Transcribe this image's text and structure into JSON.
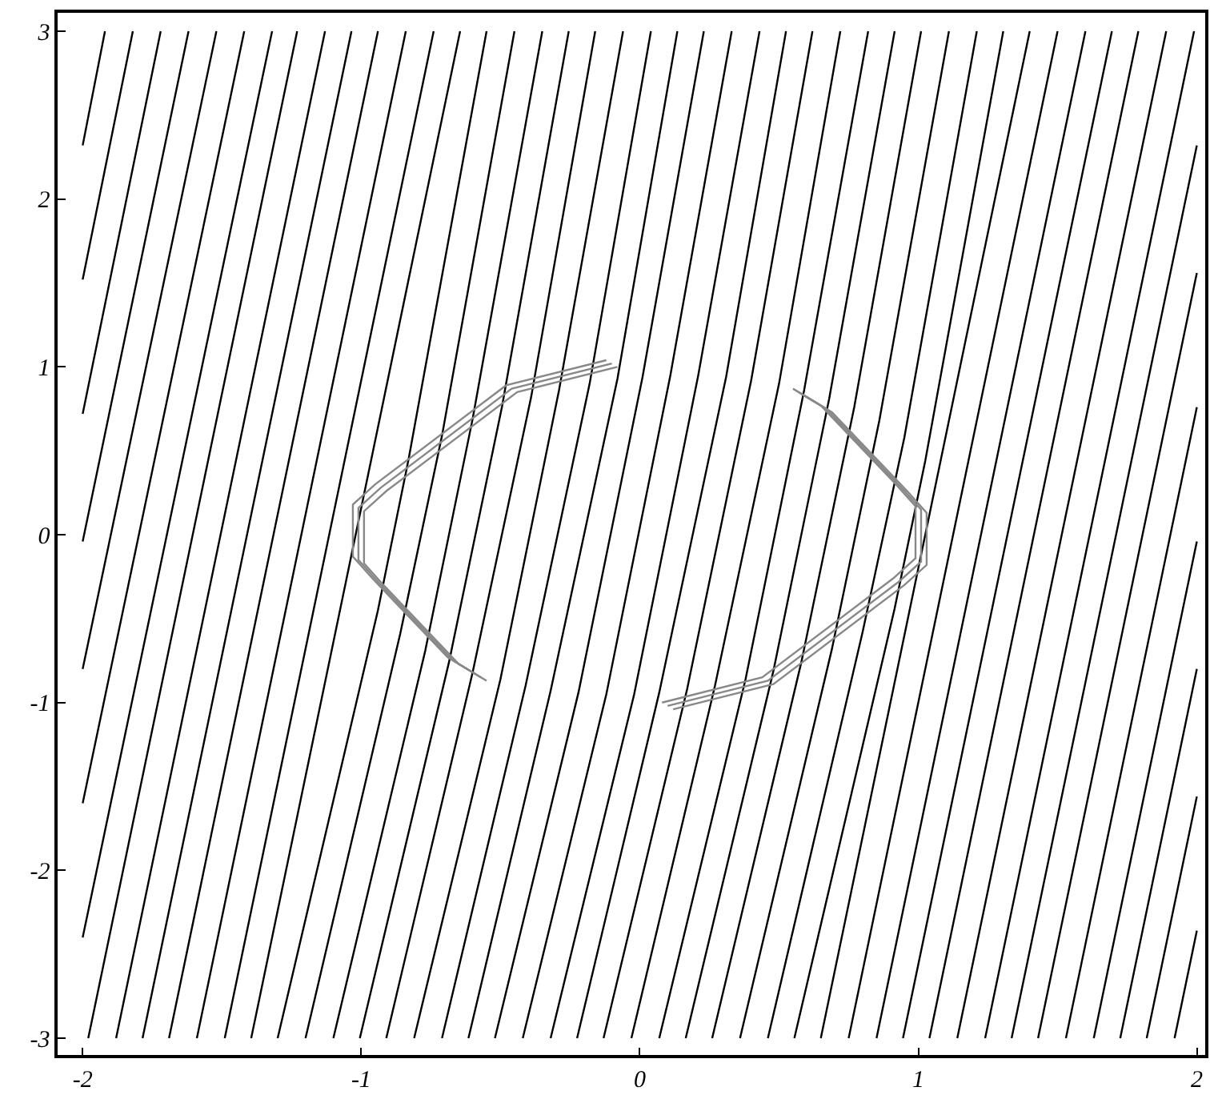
{
  "chart_data": {
    "type": "line",
    "xlim": [
      -2.09,
      2.03
    ],
    "ylim": [
      -3.1,
      3.11
    ],
    "xticks": [
      -2,
      -1,
      0,
      1,
      2
    ],
    "yticks": [
      -3,
      -2,
      -1,
      0,
      1,
      2,
      3
    ],
    "marker": "none",
    "line_style": "solid",
    "series": [
      {
        "color": "#000000",
        "x": [
          -2,
          -1.92
        ],
        "values": [
          2.32,
          3
        ]
      },
      {
        "color": "#000000",
        "x": [
          -2,
          -1.82
        ],
        "values": [
          1.52,
          3
        ]
      },
      {
        "color": "#000000",
        "x": [
          -2,
          -1.72
        ],
        "values": [
          0.72,
          3
        ]
      },
      {
        "color": "#000000",
        "x": [
          -2,
          -1.62
        ],
        "values": [
          -0.04,
          3
        ]
      },
      {
        "color": "#000000",
        "x": [
          -2,
          -1.52
        ],
        "values": [
          -0.8,
          3
        ]
      },
      {
        "color": "#000000",
        "x": [
          -2,
          -1.42
        ],
        "values": [
          -1.6,
          3
        ]
      },
      {
        "color": "#000000",
        "x": [
          -2,
          -1.32
        ],
        "values": [
          -2.4,
          3
        ]
      },
      {
        "color": "#000000",
        "x": [
          -1.98,
          -1.23
        ],
        "values": [
          -3,
          3
        ]
      },
      {
        "color": "#000000",
        "x": [
          -1.88,
          -1.13
        ],
        "values": [
          -3,
          3
        ]
      },
      {
        "color": "#000000",
        "x": [
          -1.785,
          -1.035
        ],
        "values": [
          -3,
          3
        ]
      },
      {
        "color": "#000000",
        "x": [
          -1.69,
          -0.94
        ],
        "values": [
          -3,
          3
        ]
      },
      {
        "color": "#000000",
        "x": [
          -1.59,
          -0.84
        ],
        "values": [
          -3,
          3
        ]
      },
      {
        "color": "#000000",
        "x": [
          -1.49,
          -0.74
        ],
        "values": [
          -3,
          3
        ]
      },
      {
        "color": "#000000",
        "x": [
          -1.395,
          -0.645
        ],
        "values": [
          -3,
          3
        ]
      },
      {
        "color": "#000000",
        "x": [
          -1.3,
          -0.94,
          -0.83,
          -0.55
        ],
        "values": [
          -3,
          -0.45,
          0.45,
          3
        ]
      },
      {
        "color": "#000000",
        "x": [
          -1.2,
          -0.86,
          -0.71,
          -0.45
        ],
        "values": [
          -3,
          -0.59,
          0.59,
          3
        ]
      },
      {
        "color": "#000000",
        "x": [
          -1.1,
          -0.77,
          -0.6,
          -0.35
        ],
        "values": [
          -3,
          -0.69,
          0.69,
          3
        ]
      },
      {
        "color": "#000000",
        "x": [
          -1.005,
          -0.685,
          -0.495,
          -0.255
        ],
        "values": [
          -3,
          -0.76,
          0.76,
          3
        ]
      },
      {
        "color": "#000000",
        "x": [
          -0.91,
          -0.6,
          -0.39,
          -0.16
        ],
        "values": [
          -3,
          -0.82,
          0.82,
          3
        ]
      },
      {
        "color": "#000000",
        "x": [
          -0.81,
          -0.5,
          -0.29,
          -0.06
        ],
        "values": [
          -3,
          -0.86,
          0.86,
          3
        ]
      },
      {
        "color": "#000000",
        "x": [
          -0.71,
          -0.41,
          -0.18,
          0.04
        ],
        "values": [
          -3,
          -0.9,
          0.9,
          3
        ]
      },
      {
        "color": "#000000",
        "x": [
          -0.615,
          -0.32,
          -0.08,
          0.135
        ],
        "values": [
          -3,
          -0.93,
          0.93,
          3
        ]
      },
      {
        "color": "#000000",
        "x": [
          -0.52,
          -0.22,
          0.01,
          0.23
        ],
        "values": [
          -3,
          -0.94,
          0.94,
          3
        ]
      },
      {
        "color": "#000000",
        "x": [
          -0.42,
          -0.12,
          0.11,
          0.33
        ],
        "values": [
          -3,
          -0.95,
          0.95,
          3
        ]
      },
      {
        "color": "#000000",
        "x": [
          -0.32,
          -0.02,
          0.21,
          0.43
        ],
        "values": [
          -3,
          -0.95,
          0.95,
          3
        ]
      },
      {
        "color": "#000000",
        "x": [
          -0.225,
          0.07,
          0.31,
          0.525
        ],
        "values": [
          -3,
          -0.94,
          0.94,
          3
        ]
      },
      {
        "color": "#000000",
        "x": [
          -0.13,
          0.17,
          0.4,
          0.62
        ],
        "values": [
          -3,
          -0.92,
          0.92,
          3
        ]
      },
      {
        "color": "#000000",
        "x": [
          -0.03,
          0.27,
          0.5,
          0.72
        ],
        "values": [
          -3,
          -0.9,
          0.9,
          3
        ]
      },
      {
        "color": "#000000",
        "x": [
          0.07,
          0.38,
          0.59,
          0.82
        ],
        "values": [
          -3,
          -0.86,
          0.86,
          3
        ]
      },
      {
        "color": "#000000",
        "x": [
          0.165,
          0.48,
          0.68,
          0.915
        ],
        "values": [
          -3,
          -0.81,
          0.81,
          3
        ]
      },
      {
        "color": "#000000",
        "x": [
          0.26,
          0.58,
          0.77,
          1.01
        ],
        "values": [
          -3,
          -0.76,
          0.76,
          3
        ]
      },
      {
        "color": "#000000",
        "x": [
          0.36,
          0.69,
          0.86,
          1.11
        ],
        "values": [
          -3,
          -0.68,
          0.68,
          3
        ]
      },
      {
        "color": "#000000",
        "x": [
          0.46,
          0.8,
          0.95,
          1.21
        ],
        "values": [
          -3,
          -0.58,
          0.58,
          3
        ]
      },
      {
        "color": "#000000",
        "x": [
          0.555,
          0.915,
          1.025,
          1.305
        ],
        "values": [
          -3,
          -0.44,
          0.44,
          3
        ]
      },
      {
        "color": "#000000",
        "x": [
          0.65,
          1.4
        ],
        "values": [
          -3,
          3
        ]
      },
      {
        "color": "#000000",
        "x": [
          0.75,
          1.5
        ],
        "values": [
          -3,
          3
        ]
      },
      {
        "color": "#000000",
        "x": [
          0.85,
          1.6
        ],
        "values": [
          -3,
          3
        ]
      },
      {
        "color": "#000000",
        "x": [
          0.945,
          1.695
        ],
        "values": [
          -3,
          3
        ]
      },
      {
        "color": "#000000",
        "x": [
          1.04,
          1.79
        ],
        "values": [
          -3,
          3
        ]
      },
      {
        "color": "#000000",
        "x": [
          1.14,
          1.89
        ],
        "values": [
          -3,
          3
        ]
      },
      {
        "color": "#000000",
        "x": [
          1.24,
          1.99
        ],
        "values": [
          -3,
          3
        ]
      },
      {
        "color": "#000000",
        "x": [
          1.335,
          2
        ],
        "values": [
          -3,
          2.32
        ]
      },
      {
        "color": "#000000",
        "x": [
          1.43,
          2
        ],
        "values": [
          -3,
          1.56
        ]
      },
      {
        "color": "#000000",
        "x": [
          1.53,
          2
        ],
        "values": [
          -3,
          0.76
        ]
      },
      {
        "color": "#000000",
        "x": [
          1.63,
          2
        ],
        "values": [
          -3,
          -0.04
        ]
      },
      {
        "color": "#000000",
        "x": [
          1.725,
          2
        ],
        "values": [
          -3,
          -0.8
        ]
      },
      {
        "color": "#000000",
        "x": [
          1.82,
          2
        ],
        "values": [
          -3,
          -1.56
        ]
      },
      {
        "color": "#000000",
        "x": [
          1.92,
          2
        ],
        "values": [
          -3,
          -2.36
        ]
      },
      {
        "color": "#888888",
        "x": [
          -0.59,
          -0.69,
          -0.96,
          -1.03,
          -1.03,
          -0.95,
          -0.48,
          -0.12
        ],
        "values": [
          -0.83,
          -0.73,
          -0.26,
          -0.13,
          0.18,
          0.3,
          0.89,
          1.04
        ]
      },
      {
        "color": "#888888",
        "x": [
          -0.57,
          -0.67,
          -0.94,
          -1.01,
          -1.01,
          -0.93,
          -0.46,
          -0.1
        ],
        "values": [
          -0.85,
          -0.75,
          -0.28,
          -0.15,
          0.16,
          0.28,
          0.87,
          1.02
        ]
      },
      {
        "color": "#888888",
        "x": [
          -0.55,
          -0.65,
          -0.92,
          -0.99,
          -0.99,
          -0.91,
          -0.44,
          -0.08
        ],
        "values": [
          -0.87,
          -0.77,
          -0.3,
          -0.17,
          0.14,
          0.26,
          0.85,
          1.0
        ]
      },
      {
        "color": "#888888",
        "x": [
          0.59,
          0.69,
          0.96,
          1.03,
          1.03,
          0.95,
          0.48,
          0.12
        ],
        "values": [
          0.83,
          0.73,
          0.26,
          0.13,
          -0.18,
          -0.3,
          -0.89,
          -1.04
        ]
      },
      {
        "color": "#888888",
        "x": [
          0.57,
          0.67,
          0.94,
          1.01,
          1.01,
          0.93,
          0.46,
          0.1
        ],
        "values": [
          0.85,
          0.75,
          0.28,
          0.15,
          -0.16,
          -0.28,
          -0.87,
          -1.02
        ]
      },
      {
        "color": "#888888",
        "x": [
          0.55,
          0.65,
          0.92,
          0.99,
          0.99,
          0.91,
          0.44,
          0.08
        ],
        "values": [
          0.87,
          0.77,
          0.3,
          0.17,
          -0.14,
          -0.26,
          -0.85,
          -1.0
        ]
      }
    ]
  }
}
